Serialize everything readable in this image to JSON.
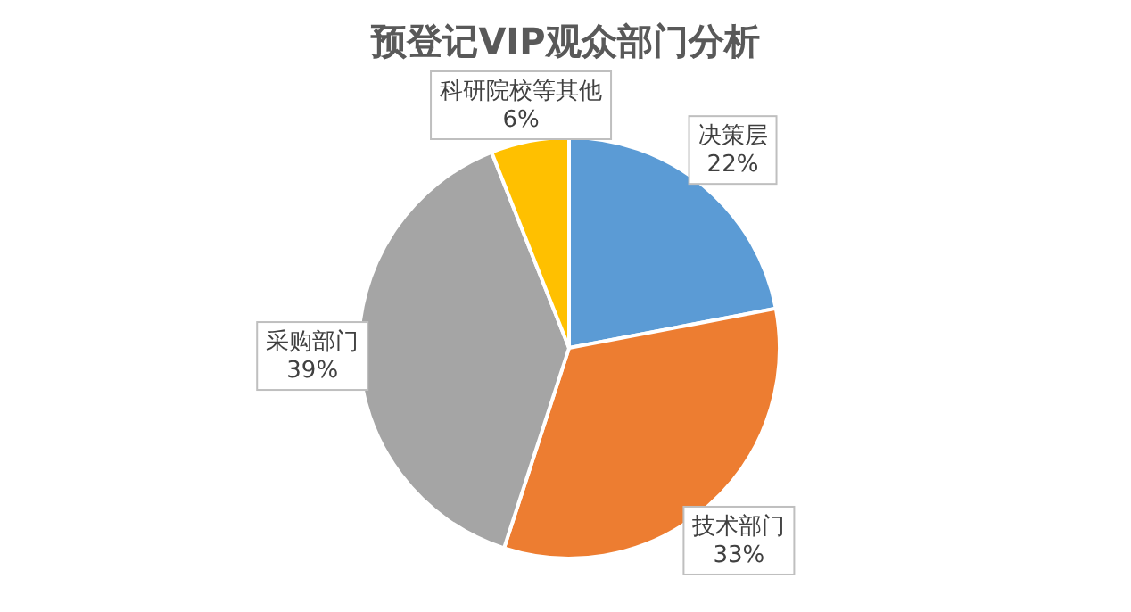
{
  "chart_data": {
    "type": "pie",
    "title": "预登记VIP观众部门分析",
    "categories": [
      "决策层",
      "技术部门",
      "采购部门",
      "科研院校等其他"
    ],
    "values": [
      22,
      33,
      39,
      6
    ],
    "colors": [
      "#5b9bd5",
      "#ed7d31",
      "#a5a5a5",
      "#ffc000"
    ],
    "value_labels": [
      "22%",
      "33%",
      "39%",
      "6%"
    ]
  }
}
